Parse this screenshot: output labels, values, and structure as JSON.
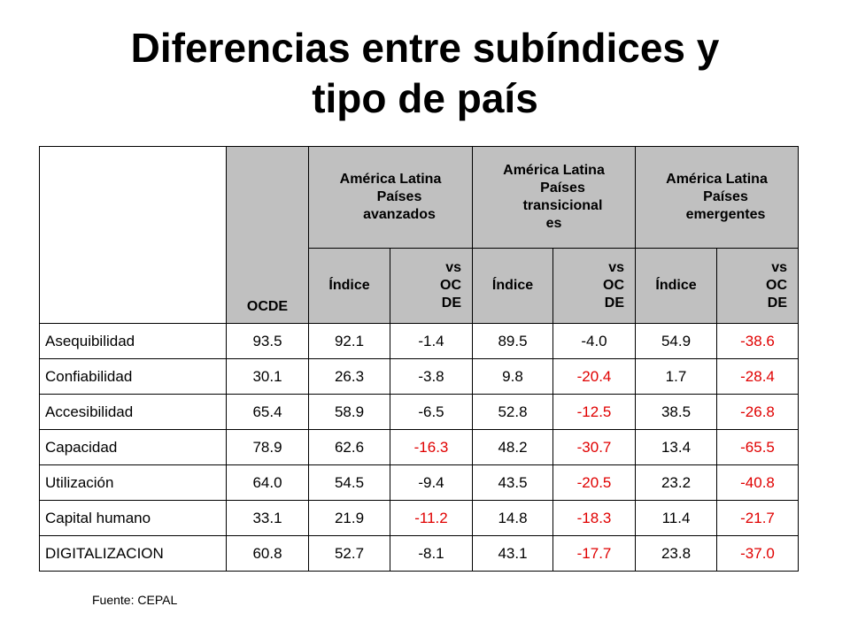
{
  "title_line1": "Diferencias entre subíndices y",
  "title_line2": "tipo de país",
  "table": {
    "col_ocde": "OCDE",
    "groups": [
      {
        "line1": "América Latina",
        "line2": "Países",
        "line3": "avanzados",
        "line4": ""
      },
      {
        "line1": "América Latina",
        "line2": "Países",
        "line3": "transicional",
        "line4": "es"
      },
      {
        "line1": "América Latina",
        "line2": "Países",
        "line3": "emergentes",
        "line4": ""
      }
    ],
    "sub_index": "Índice",
    "sub_vs_1": "vs",
    "sub_vs_2": "OC",
    "sub_vs_3": "DE",
    "rows": [
      {
        "label": "Asequibilidad",
        "ocde": "93.5",
        "av_i": "92.1",
        "av_vs": "-1.4",
        "tr_i": "89.5",
        "tr_vs": "-4.0",
        "em_i": "54.9",
        "em_vs": "-38.6"
      },
      {
        "label": "Confiabilidad",
        "ocde": "30.1",
        "av_i": "26.3",
        "av_vs": "-3.8",
        "tr_i": "9.8",
        "tr_vs": "-20.4",
        "em_i": "1.7",
        "em_vs": "-28.4"
      },
      {
        "label": "Accesibilidad",
        "ocde": "65.4",
        "av_i": "58.9",
        "av_vs": "-6.5",
        "tr_i": "52.8",
        "tr_vs": "-12.5",
        "em_i": "38.5",
        "em_vs": "-26.8"
      },
      {
        "label": "Capacidad",
        "ocde": "78.9",
        "av_i": "62.6",
        "av_vs": "-16.3",
        "tr_i": "48.2",
        "tr_vs": "-30.7",
        "em_i": "13.4",
        "em_vs": "-65.5"
      },
      {
        "label": "Utilización",
        "ocde": "64.0",
        "av_i": "54.5",
        "av_vs": "-9.4",
        "tr_i": "43.5",
        "tr_vs": "-20.5",
        "em_i": "23.2",
        "em_vs": "-40.8"
      },
      {
        "label": "Capital humano",
        "ocde": "33.1",
        "av_i": "21.9",
        "av_vs": "-11.2",
        "tr_i": "14.8",
        "tr_vs": "-18.3",
        "em_i": "11.4",
        "em_vs": "-21.7"
      },
      {
        "label": "DIGITALIZACION",
        "ocde": "60.8",
        "av_i": "52.7",
        "av_vs": "-8.1",
        "tr_i": "43.1",
        "tr_vs": "-17.7",
        "em_i": "23.8",
        "em_vs": "-37.0"
      }
    ],
    "highlight_color": "#e00000"
  },
  "source": "Fuente: CEPAL"
}
